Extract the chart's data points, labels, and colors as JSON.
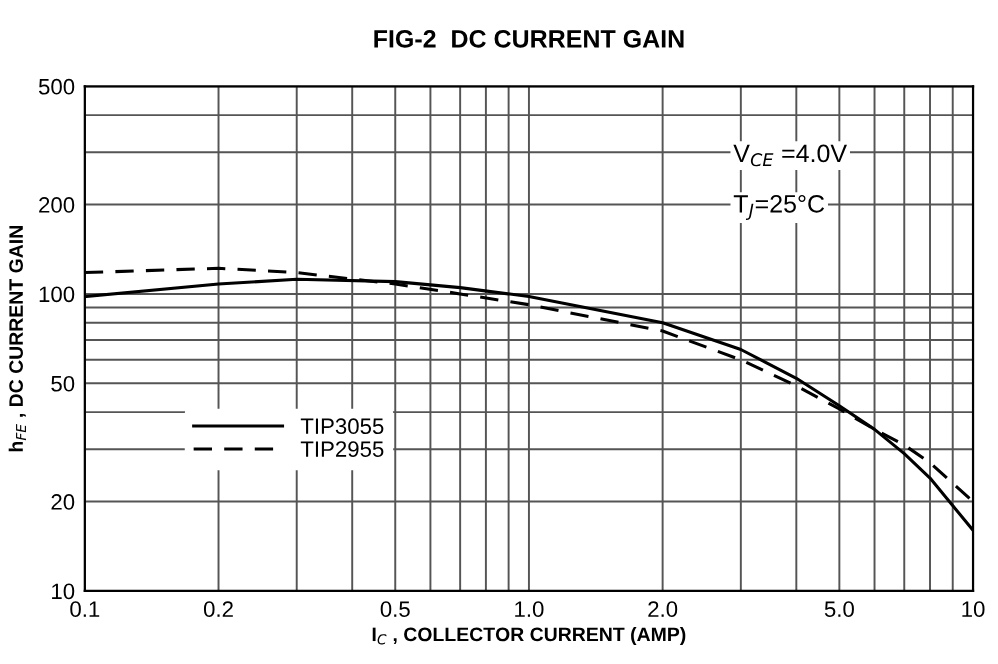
{
  "chart_data": {
    "type": "line",
    "title": "FIG-2  DC CURRENT GAIN",
    "xlabel": "I$_{C}$ , COLLECTOR CURRENT (AMP)",
    "ylabel": "h$_{FE}$ , DC CURRENT GAIN",
    "annotations": [
      "V$_{CE}$ =4.0V",
      "T$_{J}$=25°C"
    ],
    "log": "xy",
    "grid": true,
    "legend": "bottom left",
    "marker": "none",
    "xlim": [
      0.1,
      10
    ],
    "ylim": [
      10,
      500
    ],
    "xticks": [
      0.1,
      {
        "value": 0.2,
        "label": "0.2"
      },
      {
        "value": 0.3,
        "label": null
      },
      {
        "value": 0.4,
        "label": null
      },
      {
        "value": 0.5,
        "label": "0.5"
      },
      {
        "value": 0.6,
        "label": null
      },
      {
        "value": 0.7,
        "label": null
      },
      {
        "value": 0.8,
        "label": null
      },
      {
        "value": 0.9,
        "label": null
      },
      {
        "value": 1,
        "label": "1.0"
      },
      {
        "value": 2,
        "label": "2.0"
      },
      {
        "value": 3,
        "label": null
      },
      {
        "value": 4,
        "label": null
      },
      {
        "value": 5,
        "label": "5.0"
      },
      {
        "value": 6,
        "label": null
      },
      {
        "value": 7,
        "label": null
      },
      {
        "value": 8,
        "label": null
      },
      {
        "value": 9,
        "label": null
      },
      10
    ],
    "yticks": [
      10,
      20,
      {
        "value": 30,
        "label": null
      },
      {
        "value": 40,
        "label": null
      },
      50,
      {
        "value": 60,
        "label": null
      },
      {
        "value": 70,
        "label": null
      },
      {
        "value": 80,
        "label": null
      },
      {
        "value": 90,
        "label": null
      },
      100,
      200,
      {
        "value": 300,
        "label": null
      },
      {
        "value": 400,
        "label": null
      },
      500
    ],
    "x": [
      0.1,
      0.2,
      0.3,
      0.5,
      0.7,
      1.0,
      2.0,
      3.0,
      4.0,
      5.0,
      6.0,
      7.0,
      8.0,
      10
    ],
    "series": [
      {
        "name": "TIP3055",
        "color": "#000000",
        "line_style": "solid",
        "values": [
          98,
          108,
          112,
          110,
          105,
          98,
          80,
          65,
          52,
          42,
          35,
          29,
          24,
          16
        ]
      },
      {
        "name": "TIP2955",
        "color": "#000000",
        "line_style": "dashed",
        "values": [
          118,
          122,
          118,
          108,
          100,
          92,
          75,
          60,
          49,
          41,
          35,
          31,
          27,
          20
        ]
      }
    ]
  }
}
